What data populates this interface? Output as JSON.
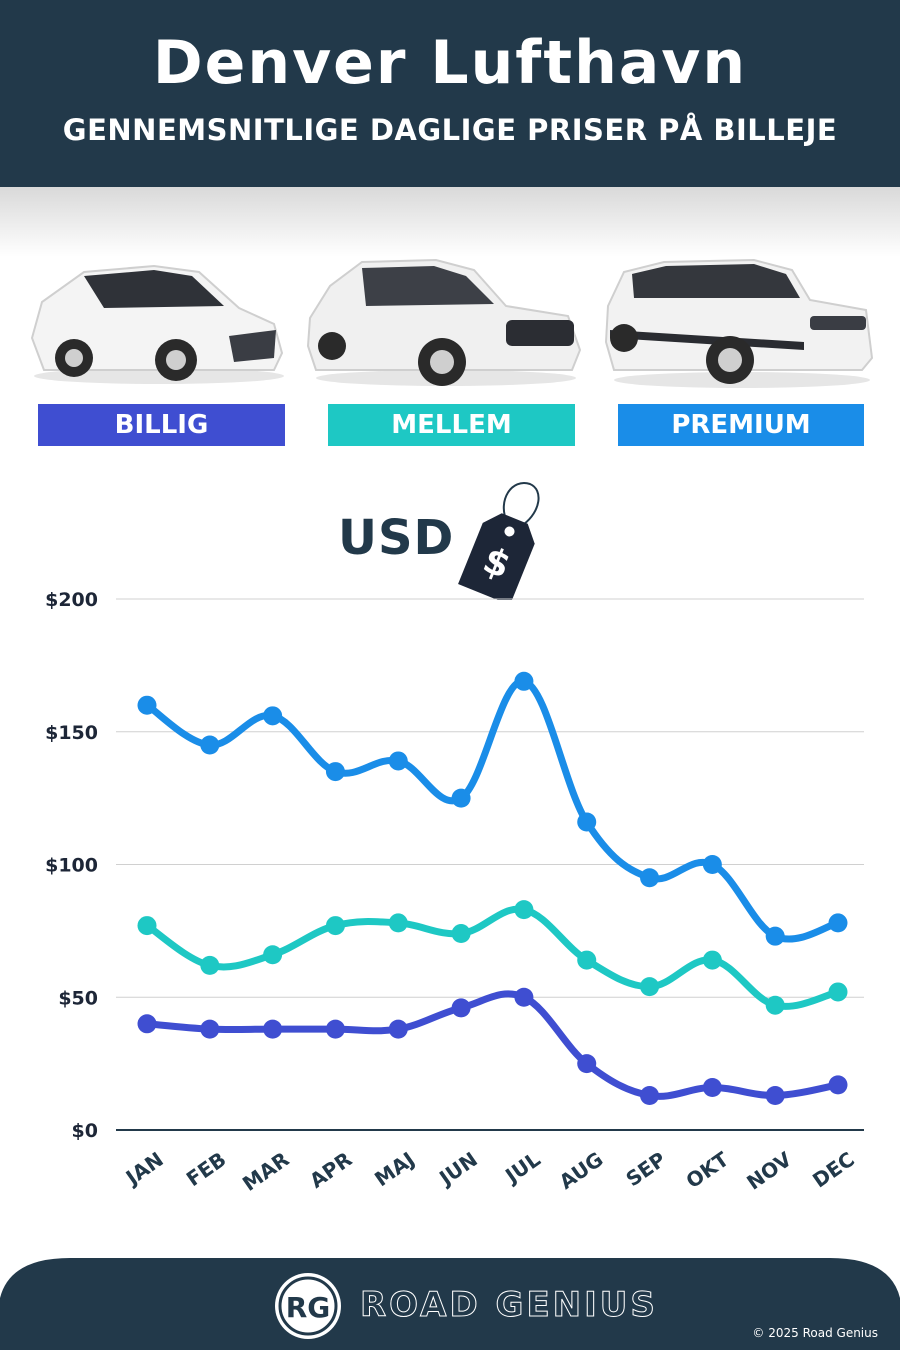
{
  "header": {
    "title": "Denver Lufthavn",
    "subtitle": "GENNEMSNITLIGE DAGLIGE PRISER PÅ BILLEJE"
  },
  "categories": [
    {
      "label": "BILLIG",
      "color": "#3f4ed1"
    },
    {
      "label": "MELLEM",
      "color": "#1ec8c4"
    },
    {
      "label": "PREMIUM",
      "color": "#1a8de8"
    }
  ],
  "currency_label": "USD",
  "tag_symbol": "$",
  "chart_data": {
    "type": "line",
    "categories": [
      "JAN",
      "FEB",
      "MAR",
      "APR",
      "MAJ",
      "JUN",
      "JUL",
      "AUG",
      "SEP",
      "OKT",
      "NOV",
      "DEC"
    ],
    "series": [
      {
        "name": "PREMIUM",
        "color": "#1a8de8",
        "values": [
          160,
          145,
          156,
          135,
          139,
          125,
          169,
          116,
          95,
          100,
          73,
          78
        ]
      },
      {
        "name": "MELLEM",
        "color": "#1ec8c4",
        "values": [
          77,
          62,
          66,
          77,
          78,
          74,
          83,
          64,
          54,
          64,
          47,
          52
        ]
      },
      {
        "name": "BILLIG",
        "color": "#3f4ed1",
        "values": [
          40,
          38,
          38,
          38,
          38,
          46,
          50,
          25,
          13,
          16,
          13,
          17
        ]
      }
    ],
    "yticks": [
      "$0",
      "$50",
      "$100",
      "$150",
      "$200"
    ],
    "ylim": [
      0,
      200
    ],
    "grid": true
  },
  "footer": {
    "logo_initials": "RG",
    "brand": "ROAD GENIUS",
    "copyright": "© 2025 Road Genius"
  }
}
